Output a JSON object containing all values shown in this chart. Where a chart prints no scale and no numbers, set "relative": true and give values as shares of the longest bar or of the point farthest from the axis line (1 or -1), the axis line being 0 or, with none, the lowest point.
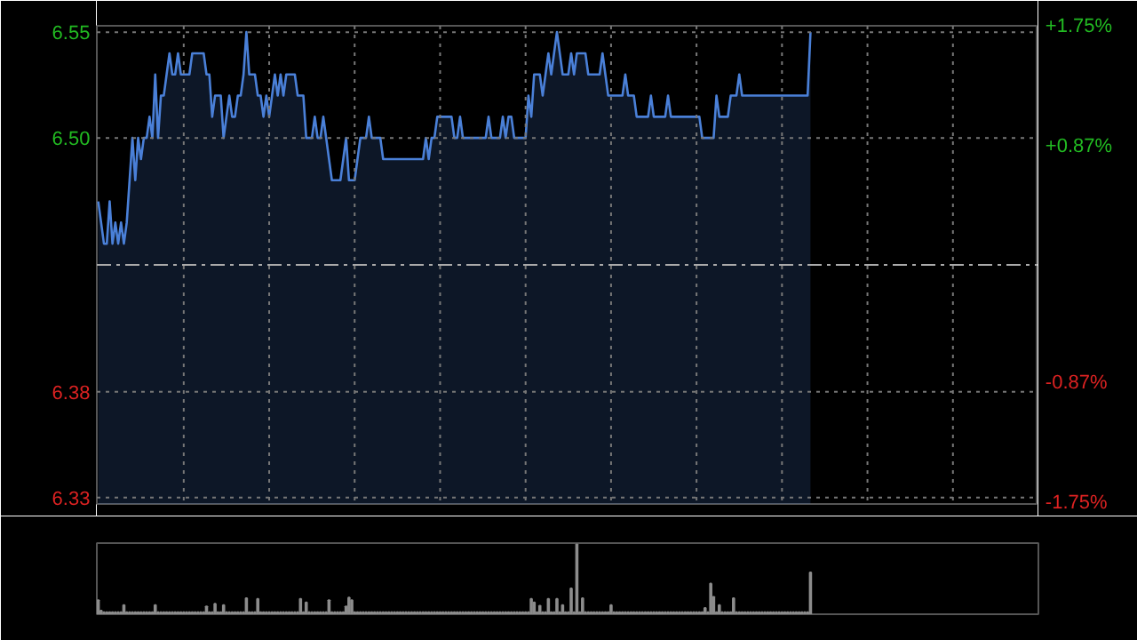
{
  "chart_data": [
    {
      "type": "area",
      "categories": [
        null,
        null,
        null,
        null,
        null,
        null,
        null,
        null,
        null,
        null,
        null,
        null,
        null,
        null,
        null,
        null,
        null,
        null,
        null,
        null,
        null,
        null,
        null,
        null,
        null,
        null,
        null,
        null,
        null,
        null,
        null,
        null,
        null,
        null,
        null,
        null,
        null,
        null,
        null,
        null,
        null,
        null,
        null,
        null,
        null,
        null,
        null,
        null,
        null,
        null,
        null,
        null,
        null,
        null,
        null,
        null,
        null,
        null,
        null,
        null,
        null,
        null,
        null,
        null,
        null,
        null,
        null,
        null,
        null,
        null,
        null,
        null,
        null,
        null,
        null,
        null,
        null,
        null,
        null,
        null,
        null,
        null,
        null,
        null,
        null,
        null,
        null,
        null,
        null,
        null,
        null,
        null,
        null,
        null,
        null,
        null,
        null,
        null,
        null,
        null,
        null,
        null,
        null,
        null,
        null,
        null,
        null,
        null,
        null,
        null,
        null,
        null,
        null,
        null,
        null,
        null,
        null,
        null,
        null,
        null,
        null,
        null,
        null,
        null,
        null,
        null,
        null,
        null,
        null,
        null,
        null,
        null,
        null,
        null,
        null,
        null,
        null,
        null,
        null,
        null,
        null,
        null,
        null,
        null,
        null,
        null,
        null,
        null,
        null,
        null,
        null,
        null,
        null,
        null,
        null,
        null,
        null,
        null,
        null,
        null,
        null,
        null,
        null,
        null,
        null,
        null,
        null,
        null,
        null,
        null,
        null,
        null,
        null,
        null,
        null,
        null,
        null,
        null,
        null,
        null,
        null,
        null,
        null,
        null,
        null,
        null,
        null,
        null,
        null,
        null,
        null,
        null,
        null,
        null,
        null,
        null,
        null,
        null,
        null,
        null,
        null,
        null,
        null,
        null,
        null,
        null,
        null,
        null,
        null,
        null,
        null,
        null,
        null,
        null,
        null,
        null,
        null,
        null,
        null,
        null,
        null,
        null,
        null,
        null,
        null,
        null,
        null,
        null,
        null,
        null,
        null,
        null,
        null,
        null,
        null,
        null,
        null,
        null,
        null,
        null,
        null,
        null,
        null,
        null,
        null,
        null,
        null,
        null,
        null,
        null,
        null
      ],
      "series": [
        {
          "color": "#4a80d8",
          "values": [
            6.47,
            6.46,
            6.45,
            6.45,
            6.47,
            6.45,
            6.46,
            6.45,
            6.46,
            6.45,
            6.46,
            6.48,
            6.5,
            6.48,
            6.5,
            6.49,
            6.5,
            6.5,
            6.51,
            6.5,
            6.53,
            6.5,
            6.52,
            6.52,
            6.53,
            6.54,
            6.53,
            6.53,
            6.54,
            6.53,
            6.53,
            6.53,
            6.53,
            6.54,
            6.54,
            6.54,
            6.54,
            6.54,
            6.53,
            6.53,
            6.51,
            6.52,
            6.52,
            6.52,
            6.5,
            6.51,
            6.52,
            6.51,
            6.51,
            6.52,
            6.52,
            6.53,
            6.55,
            6.53,
            6.53,
            6.53,
            6.52,
            6.52,
            6.51,
            6.52,
            6.51,
            6.52,
            6.53,
            6.52,
            6.53,
            6.52,
            6.53,
            6.53,
            6.53,
            6.53,
            6.52,
            6.52,
            6.52,
            6.5,
            6.5,
            6.5,
            6.51,
            6.5,
            6.5,
            6.51,
            6.5,
            6.49,
            6.48,
            6.48,
            6.48,
            6.48,
            6.49,
            6.5,
            6.48,
            6.48,
            6.48,
            6.49,
            6.5,
            6.5,
            6.5,
            6.51,
            6.5,
            6.5,
            6.5,
            6.5,
            6.49,
            6.49,
            6.49,
            6.49,
            6.49,
            6.49,
            6.49,
            6.49,
            6.49,
            6.49,
            6.49,
            6.49,
            6.49,
            6.49,
            6.49,
            6.5,
            6.49,
            6.5,
            6.5,
            6.51,
            6.51,
            6.51,
            6.51,
            6.51,
            6.51,
            6.5,
            6.5,
            6.51,
            6.5,
            6.5,
            6.5,
            6.5,
            6.5,
            6.5,
            6.5,
            6.5,
            6.5,
            6.51,
            6.5,
            6.5,
            6.5,
            6.5,
            6.51,
            6.5,
            6.51,
            6.51,
            6.5,
            6.5,
            6.5,
            6.5,
            6.5,
            6.52,
            6.51,
            6.53,
            6.53,
            6.53,
            6.52,
            6.53,
            6.54,
            6.53,
            6.54,
            6.55,
            6.54,
            6.53,
            6.53,
            6.53,
            6.54,
            6.53,
            6.54,
            6.54,
            6.54,
            6.54,
            6.53,
            6.53,
            6.53,
            6.53,
            6.53,
            6.54,
            6.53,
            6.52,
            6.52,
            6.52,
            6.52,
            6.52,
            6.52,
            6.53,
            6.52,
            6.52,
            6.52,
            6.51,
            6.51,
            6.51,
            6.51,
            6.51,
            6.52,
            6.51,
            6.51,
            6.51,
            6.51,
            6.51,
            6.52,
            6.51,
            6.51,
            6.51,
            6.51,
            6.51,
            6.51,
            6.51,
            6.51,
            6.51,
            6.51,
            6.51,
            6.5,
            6.5,
            6.5,
            6.5,
            6.5,
            6.52,
            6.51,
            6.51,
            6.51,
            6.51,
            6.52,
            6.52,
            6.52,
            6.53,
            6.52,
            6.52,
            6.52,
            6.52,
            6.52,
            6.52,
            6.52,
            6.52,
            6.52,
            6.52,
            6.52,
            6.52,
            6.52,
            6.52,
            6.52,
            6.52,
            6.52,
            6.52,
            6.52,
            6.52,
            6.52,
            6.52,
            6.52,
            6.52,
            6.55
          ]
        }
      ],
      "ylim": [
        6.327,
        6.553
      ],
      "yticks": [
        6.33,
        6.38,
        {
          "value": 6.5,
          "label": "6.50"
        },
        6.55
      ],
      "y2lim": [
        -1.755,
        1.755
      ],
      "y2ticks": [
        {
          "value": -1.75,
          "label": "-1.75%"
        },
        {
          "value": -0.87,
          "label": "-0.87%"
        },
        {
          "value": 0.87,
          "label": "+0.87%"
        },
        {
          "value": 1.75,
          "label": "+1.75%"
        }
      ],
      "grid": true,
      "ref_lines": [
        {
          "axis": "y",
          "value": 6.44,
          "color": "#aaaaaa",
          "line_style": "dashed"
        }
      ]
    },
    {
      "type": "bar",
      "relative": true,
      "categories": [
        null,
        null,
        null,
        null,
        null,
        null,
        null,
        null,
        null,
        null,
        null,
        null,
        null,
        null,
        null,
        null,
        null,
        null,
        null,
        null,
        null,
        null,
        null,
        null,
        null,
        null,
        null,
        null,
        null,
        null,
        null,
        null,
        null,
        null,
        null,
        null,
        null,
        null,
        null,
        null,
        null,
        null,
        null,
        null,
        null,
        null,
        null,
        null,
        null,
        null,
        null,
        null,
        null,
        null,
        null,
        null,
        null,
        null,
        null,
        null,
        null,
        null,
        null,
        null,
        null,
        null,
        null,
        null,
        null,
        null,
        null,
        null,
        null,
        null,
        null,
        null,
        null,
        null,
        null,
        null,
        null,
        null,
        null,
        null,
        null,
        null,
        null,
        null,
        null,
        null,
        null,
        null,
        null,
        null,
        null,
        null,
        null,
        null,
        null,
        null,
        null,
        null,
        null,
        null,
        null,
        null,
        null,
        null,
        null,
        null,
        null,
        null,
        null,
        null,
        null,
        null,
        null,
        null,
        null,
        null,
        null,
        null,
        null,
        null,
        null,
        null,
        null,
        null,
        null,
        null,
        null,
        null,
        null,
        null,
        null,
        null,
        null,
        null,
        null,
        null,
        null,
        null,
        null,
        null,
        null,
        null,
        null,
        null,
        null,
        null,
        null,
        null,
        null,
        null,
        null,
        null,
        null,
        null,
        null,
        null,
        null,
        null,
        null,
        null,
        null,
        null,
        null,
        null,
        null,
        null,
        null,
        null,
        null,
        null,
        null,
        null,
        null,
        null,
        null,
        null,
        null,
        null,
        null,
        null,
        null,
        null,
        null,
        null,
        null,
        null,
        null,
        null,
        null,
        null,
        null,
        null,
        null,
        null,
        null,
        null,
        null,
        null,
        null,
        null,
        null,
        null,
        null,
        null,
        null,
        null,
        null,
        null,
        null,
        null,
        null,
        null,
        null,
        null,
        null,
        null,
        null,
        null,
        null,
        null,
        null,
        null,
        null,
        null,
        null,
        null,
        null,
        null,
        null,
        null,
        null,
        null,
        null,
        null,
        null,
        null,
        null,
        null,
        null,
        null,
        null,
        null,
        null,
        null,
        null,
        null,
        null
      ],
      "series": [
        {
          "color": "#8c8c8c",
          "values": [
            0.2,
            0.05,
            0.03,
            0.03,
            0.03,
            0.03,
            0.03,
            0.03,
            0.03,
            0.13,
            0.03,
            0.03,
            0.03,
            0.03,
            0.03,
            0.03,
            0.03,
            0.03,
            0.03,
            0.03,
            0.13,
            0.03,
            0.03,
            0.03,
            0.03,
            0.03,
            0.03,
            0.03,
            0.03,
            0.03,
            0.03,
            0.03,
            0.03,
            0.03,
            0.03,
            0.03,
            0.03,
            0.03,
            0.11,
            0.03,
            0.03,
            0.15,
            0.03,
            0.03,
            0.13,
            0.03,
            0.03,
            0.03,
            0.03,
            0.03,
            0.03,
            0.03,
            0.23,
            0.03,
            0.03,
            0.03,
            0.22,
            0.03,
            0.03,
            0.03,
            0.03,
            0.03,
            0.03,
            0.03,
            0.03,
            0.03,
            0.03,
            0.03,
            0.03,
            0.03,
            0.03,
            0.22,
            0.03,
            0.17,
            0.03,
            0.03,
            0.03,
            0.03,
            0.03,
            0.03,
            0.03,
            0.2,
            0.03,
            0.03,
            0.03,
            0.03,
            0.03,
            0.11,
            0.24,
            0.2,
            0.03,
            0.03,
            0.03,
            0.03,
            0.03,
            0.03,
            0.03,
            0.03,
            0.03,
            0.03,
            0.03,
            0.03,
            0.03,
            0.03,
            0.03,
            0.03,
            0.03,
            0.03,
            0.03,
            0.03,
            0.03,
            0.03,
            0.03,
            0.03,
            0.03,
            0.03,
            0.03,
            0.03,
            0.03,
            0.03,
            0.03,
            0.03,
            0.03,
            0.03,
            0.03,
            0.03,
            0.03,
            0.03,
            0.03,
            0.03,
            0.03,
            0.03,
            0.03,
            0.03,
            0.03,
            0.03,
            0.03,
            0.03,
            0.03,
            0.03,
            0.03,
            0.03,
            0.03,
            0.03,
            0.03,
            0.03,
            0.03,
            0.03,
            0.03,
            0.03,
            0.03,
            0.03,
            0.22,
            0.17,
            0.03,
            0.12,
            0.03,
            0.03,
            0.22,
            0.03,
            0.03,
            0.22,
            0.03,
            0.13,
            0.03,
            0.03,
            0.37,
            0.03,
            1,
            0.03,
            0.23,
            0.03,
            0.03,
            0.03,
            0.03,
            0.03,
            0.03,
            0.03,
            0.03,
            0.03,
            0.13,
            0.03,
            0.03,
            0.03,
            0.03,
            0.03,
            0.03,
            0.03,
            0.03,
            0.03,
            0.03,
            0.03,
            0.03,
            0.03,
            0.03,
            0.03,
            0.03,
            0.03,
            0.03,
            0.03,
            0.03,
            0.03,
            0.03,
            0.03,
            0.03,
            0.03,
            0.03,
            0.03,
            0.03,
            0.03,
            0.03,
            0.03,
            0.03,
            0.09,
            0.03,
            0.44,
            0.25,
            0.03,
            0.13,
            0.03,
            0.03,
            0.03,
            0.03,
            0.23,
            0.03,
            0.03,
            0.03,
            0.03,
            0.03,
            0.03,
            0.03,
            0.03,
            0.03,
            0.03,
            0.03,
            0.03,
            0.03,
            0.03,
            0.03,
            0.03,
            0.03,
            0.03,
            0.03,
            0.03,
            0.03,
            0.03,
            0.03,
            0.03,
            0.03,
            0.03,
            0.6
          ]
        }
      ]
    }
  ]
}
